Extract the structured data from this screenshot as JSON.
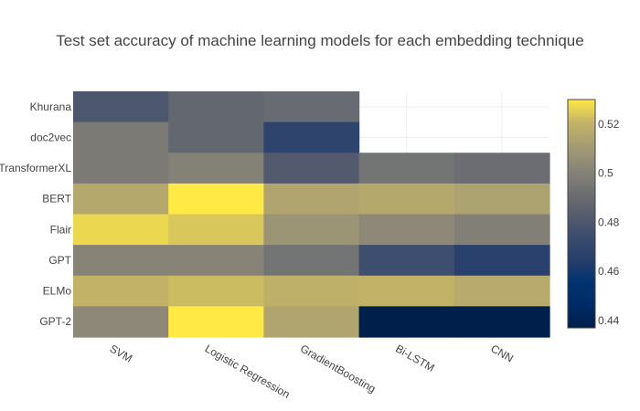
{
  "chart_data": {
    "type": "heatmap",
    "title": "Test set accuracy of machine learning models for each embedding technique",
    "x_categories": [
      "SVM",
      "Logistic Regression",
      "GradientBoosting",
      "Bi-LSTM",
      "CNN"
    ],
    "y_categories": [
      "Khurana",
      "doc2vec",
      "TransformerXL",
      "BERT",
      "Flair",
      "GPT",
      "ELMo",
      "GPT-2"
    ],
    "values": [
      [
        0.48,
        0.488,
        0.49,
        null,
        null
      ],
      [
        0.497,
        0.488,
        0.468,
        null,
        null
      ],
      [
        0.497,
        0.5,
        0.482,
        0.494,
        0.491
      ],
      [
        0.516,
        0.53,
        0.515,
        0.516,
        0.514
      ],
      [
        0.527,
        0.524,
        0.508,
        0.503,
        0.499
      ],
      [
        0.501,
        0.501,
        0.494,
        0.475,
        0.466
      ],
      [
        0.52,
        0.522,
        0.519,
        0.52,
        0.517
      ],
      [
        0.503,
        0.53,
        0.515,
        0.437,
        0.437
      ]
    ],
    "zlim": [
      0.437,
      0.53
    ],
    "colorbar_ticks": [
      0.44,
      0.46,
      0.48,
      0.5,
      0.52
    ],
    "colorbar_tick_labels": [
      "0.44",
      "0.46",
      "0.48",
      "0.5",
      "0.52"
    ],
    "colorscale": "Cividis",
    "grid": true
  },
  "colors": {
    "background": "#ffffff",
    "grid": "#eeeeee",
    "text": "#444444",
    "colorbar_outline": "#444444"
  }
}
